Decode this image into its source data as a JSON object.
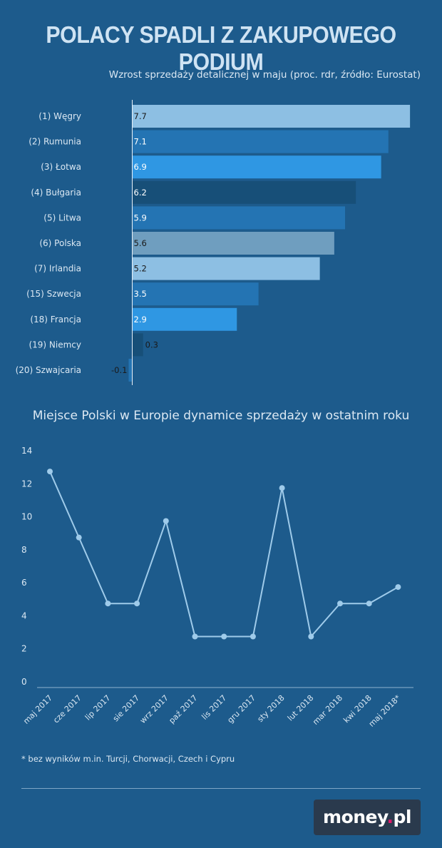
{
  "title": "POLACY SPADLI Z ZAKUPOWEGO PODIUM",
  "chart_data": [
    {
      "type": "bar",
      "orientation": "horizontal",
      "title": "Wzrost sprzedaży detalicznej w maju (proc. rdr, źródło: Eurostat)",
      "categories": [
        "(1) Węgry",
        "(2) Rumunia",
        "(3) Łotwa",
        "(4) Bułgaria",
        "(5) Litwa",
        "(6) Polska",
        "(7) Irlandia",
        "(15) Szwecja",
        "(18) Francja",
        "(19) Niemcy",
        "(20) Szwajcaria"
      ],
      "values": [
        7.7,
        7.1,
        6.9,
        6.2,
        5.9,
        5.6,
        5.2,
        3.5,
        2.9,
        0.3,
        -0.1
      ],
      "value_labels": [
        "7.7",
        "7.1",
        "6.9",
        "6.2",
        "5.9",
        "5.6",
        "5.2",
        "3.5",
        "2.9",
        "0.3",
        "-0.1"
      ],
      "colors": [
        "#8dbfe3",
        "#2474b3",
        "#2f97e3",
        "#174f78",
        "#2474b3",
        "#6f9ebf",
        "#8dbfe3",
        "#2474b3",
        "#2f97e3",
        "#174f78",
        "#2474b3"
      ],
      "label_colors": [
        "#1a1a1a",
        "#ffffff",
        "#ffffff",
        "#ffffff",
        "#ffffff",
        "#1a1a1a",
        "#1a1a1a",
        "#ffffff",
        "#ffffff",
        "#1a1a1a",
        "#1a1a1a"
      ],
      "xlim": [
        -0.1,
        7.7
      ]
    },
    {
      "type": "line",
      "title": "Miejsce Polski w Europie dynamice sprzedaży w ostatnim roku",
      "categories": [
        "maj 2017",
        "cze 2017",
        "lip 2017",
        "sie 2017",
        "wrz 2017",
        "paź 2017",
        "lis 2017",
        "gru 2017",
        "sty 2018",
        "lut 2018",
        "mar 2018",
        "kwi 2018",
        "maj 2018*"
      ],
      "values": [
        12.7,
        8.7,
        4.7,
        4.7,
        9.7,
        2.7,
        2.7,
        2.7,
        11.7,
        2.7,
        4.7,
        4.7,
        5.7
      ],
      "y_ticks": [
        "0",
        "2",
        "4",
        "6",
        "8",
        "10",
        "12",
        "14"
      ],
      "ylim": [
        0,
        14
      ],
      "color": "#9fcbea"
    }
  ],
  "footnote": "* bez wyników m.in. Turcji, Chorwacji, Czech i Cypru",
  "logo": {
    "main": "money",
    "dot": ".",
    "suffix": "pl"
  }
}
